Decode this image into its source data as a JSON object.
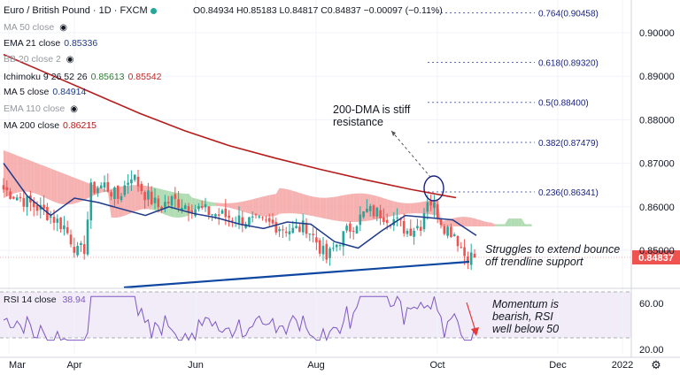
{
  "header": {
    "symbol": "Euro / British Pound · 1D · FXCM",
    "ohlc": "O0.84934 H0.85183 L0.84817 C0.84837 −0.00097 (−0.11%)"
  },
  "legend": [
    {
      "label": "MA 50 close",
      "value": "",
      "faded": true,
      "hidden": true,
      "value_color": ""
    },
    {
      "label": "EMA 21 close",
      "value": "0.85336",
      "faded": false,
      "hidden": false,
      "value_color": "#1e3a8a"
    },
    {
      "label": "BB 20 close 2",
      "value": "",
      "faded": true,
      "hidden": true,
      "value_color": ""
    },
    {
      "label": "Ichimoku 9 26 52 26",
      "value": "0.85613",
      "value2": "0.85542",
      "faded": false,
      "hidden": false,
      "value_color": "#2e7d32",
      "value2_color": "#c62828"
    },
    {
      "label": "MA 5 close",
      "value": "0.84914",
      "faded": false,
      "hidden": false,
      "value_color": "#1e3a8a"
    },
    {
      "label": "EMA 110 close",
      "value": "",
      "faded": true,
      "hidden": true,
      "value_color": ""
    },
    {
      "label": "MA 200 close",
      "value": "0.86215",
      "faded": false,
      "hidden": false,
      "value_color": "#b71c1c"
    }
  ],
  "annotations": {
    "dma": [
      "200-DMA is stiff",
      "resistance"
    ],
    "trendline": [
      "Struggles to extend bounce",
      "off trendline support"
    ],
    "momentum": [
      "Momentum is",
      "bearish, RSI",
      "well below 50"
    ]
  },
  "rsi_legend": {
    "label": "RSI 14 close",
    "value": "38.94"
  },
  "last_price_label": "0.84837",
  "colors": {
    "up": "#26a69a",
    "down": "#ef5350",
    "ma200": "#b71c1c",
    "ema21": "#1e3a8a",
    "cloud_bear": "#f4a3a3",
    "cloud_bull": "#a5d6a7",
    "trendline": "#0d47a1",
    "rsi": "#7e57c2",
    "fib": "#5c6bc0",
    "price_tag": "#ef5350"
  },
  "chart_data": {
    "type": "candlestick",
    "x_ticks": [
      "Mar",
      "Apr",
      "Jun",
      "Aug",
      "Oct",
      "Dec",
      "2022"
    ],
    "y_ticks": [
      "0.90000",
      "0.89000",
      "0.88000",
      "0.87000",
      "0.86000",
      "0.85000"
    ],
    "y_range": [
      0.8425,
      0.9075
    ],
    "fibonacci": [
      {
        "label": "0.764(0.90458)",
        "value": 0.90458
      },
      {
        "label": "0.618(0.89320)",
        "value": 0.8932
      },
      {
        "label": "0.5(0.88400)",
        "value": 0.884
      },
      {
        "label": "0.382(0.87479)",
        "value": 0.87479
      },
      {
        "label": "0.236(0.86341)",
        "value": 0.86341
      }
    ],
    "last_close": 0.84837,
    "ma200": [
      0.895,
      0.8905,
      0.886,
      0.8815,
      0.8775,
      0.874,
      0.8712,
      0.8686,
      0.8662,
      0.864,
      0.8621
    ],
    "ma200_note": "approximate path from early Mar to mid Oct",
    "ema21": [
      0.87,
      0.8625,
      0.858,
      0.862,
      0.861,
      0.8595,
      0.858,
      0.86,
      0.8585,
      0.8575,
      0.856,
      0.855,
      0.8565,
      0.856,
      0.852,
      0.8505,
      0.8545,
      0.858,
      0.8575,
      0.857,
      0.8534
    ],
    "rsi": {
      "label": "RSI 14 close",
      "last": 38.94,
      "y_ticks": [
        "60.00",
        "20.00"
      ],
      "band": [
        30,
        70
      ]
    }
  }
}
